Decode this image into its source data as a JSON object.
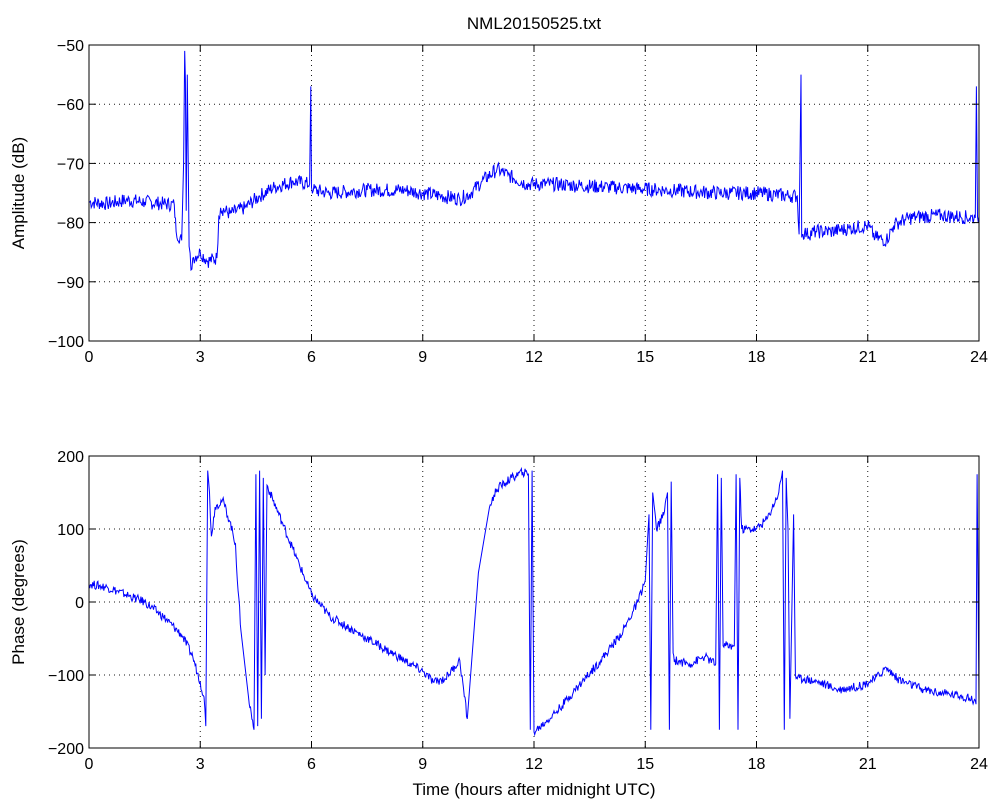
{
  "chart_data": [
    {
      "type": "line",
      "title": "NML20150525.txt",
      "xlabel": "",
      "ylabel": "Amplitude (dB)",
      "xlim": [
        0,
        24
      ],
      "ylim": [
        -100,
        -50
      ],
      "xticks": [
        0,
        3,
        6,
        9,
        12,
        15,
        18,
        21,
        24
      ],
      "xtick_labels": [
        "0",
        "3",
        "6",
        "9",
        "12",
        "15",
        "18",
        "21",
        "24"
      ],
      "yticks": [
        -100,
        -90,
        -80,
        -70,
        -60,
        -50
      ],
      "ytick_labels": [
        "−100",
        "−90",
        "−80",
        "−70",
        "−60",
        "−50"
      ],
      "grid": true,
      "color": "#0000ff",
      "series": [
        {
          "x": [
            0,
            0.5,
            1.0,
            1.5,
            2.0,
            2.3,
            2.35,
            2.5,
            2.55,
            2.58,
            2.6,
            2.62,
            2.65,
            2.7,
            2.75,
            2.8,
            3.0,
            3.2,
            3.45,
            3.5,
            3.55,
            3.8,
            4.2,
            4.6,
            5.0,
            5.5,
            5.95,
            5.98,
            6.0,
            6.05,
            6.5,
            7.5,
            8.5,
            9.5,
            10.0,
            10.3,
            10.6,
            11.0,
            11.3,
            11.8,
            12.5,
            14.0,
            15.5,
            17.0,
            18.0,
            18.9,
            19.1,
            19.15,
            19.2,
            19.22,
            19.25,
            19.3,
            19.35,
            19.6,
            20.0,
            20.5,
            21.0,
            21.2,
            21.5,
            21.7,
            21.8,
            22.0,
            22.3,
            23.0,
            23.5,
            23.9,
            23.93,
            23.96,
            24.0
          ],
          "y": [
            -76.5,
            -76.8,
            -76.2,
            -76.5,
            -76.8,
            -77,
            -81.5,
            -83,
            -70,
            -51,
            -56,
            -78,
            -55,
            -84,
            -88,
            -86,
            -85,
            -86.5,
            -86,
            -79,
            -77.5,
            -78.5,
            -77.5,
            -75.5,
            -74,
            -73,
            -73.5,
            -57,
            -74,
            -74.5,
            -75,
            -74.5,
            -74.5,
            -75.5,
            -76,
            -75,
            -73,
            -71,
            -72,
            -73.5,
            -73.5,
            -74,
            -74.5,
            -75,
            -75,
            -75.5,
            -75.5,
            -82,
            -55,
            -82.5,
            -82,
            -81.5,
            -82,
            -81.5,
            -81.5,
            -81,
            -80.5,
            -82.5,
            -83,
            -80.5,
            -80,
            -79.5,
            -79,
            -78.8,
            -79,
            -79.2,
            -57,
            -79,
            -79
          ]
        }
      ]
    },
    {
      "type": "line",
      "title": "",
      "xlabel": "Time (hours after midnight UTC)",
      "ylabel": "Phase (degrees)",
      "xlim": [
        0,
        24
      ],
      "ylim": [
        -200,
        200
      ],
      "xticks": [
        0,
        3,
        6,
        9,
        12,
        15,
        18,
        21,
        24
      ],
      "xtick_labels": [
        "0",
        "3",
        "6",
        "9",
        "12",
        "15",
        "18",
        "21",
        "24"
      ],
      "yticks": [
        -200,
        -100,
        0,
        100,
        200
      ],
      "ytick_labels": [
        "−200",
        "−100",
        "0",
        "100",
        "200"
      ],
      "grid": true,
      "color": "#0000ff",
      "series": [
        {
          "x": [
            0,
            0.5,
            1.0,
            1.5,
            2.0,
            2.5,
            2.8,
            3.0,
            3.1,
            3.15,
            3.2,
            3.25,
            3.3,
            3.4,
            3.6,
            3.8,
            3.95,
            4.0,
            4.1,
            4.3,
            4.45,
            4.5,
            4.55,
            4.6,
            4.65,
            4.7,
            4.75,
            4.8,
            5.2,
            5.6,
            6.0,
            6.5,
            7.0,
            7.5,
            8.0,
            8.5,
            9.0,
            9.3,
            9.6,
            10.0,
            10.2,
            10.5,
            10.8,
            11.0,
            11.4,
            11.7,
            11.85,
            11.9,
            11.95,
            12.0,
            12.3,
            12.7,
            13.2,
            13.8,
            14.4,
            14.8,
            15.0,
            15.1,
            15.15,
            15.2,
            15.3,
            15.5,
            15.6,
            15.65,
            15.7,
            15.75,
            15.8,
            16.2,
            16.6,
            16.9,
            16.95,
            17.0,
            17.05,
            17.1,
            17.4,
            17.45,
            17.5,
            17.55,
            17.6,
            18.0,
            18.3,
            18.6,
            18.7,
            18.75,
            18.8,
            18.85,
            18.9,
            19.0,
            19.05,
            19.1,
            19.3,
            19.7,
            20.2,
            20.8,
            21.2,
            21.5,
            21.8,
            22.0,
            22.5,
            23.0,
            23.5,
            23.9,
            23.92,
            23.95,
            24.0
          ],
          "y": [
            25,
            20,
            10,
            0,
            -20,
            -45,
            -75,
            -110,
            -130,
            -170,
            180,
            150,
            90,
            130,
            140,
            110,
            80,
            30,
            -40,
            -130,
            -175,
            175,
            -170,
            180,
            -160,
            170,
            -100,
            160,
            110,
            60,
            10,
            -20,
            -35,
            -50,
            -65,
            -80,
            -95,
            -110,
            -105,
            -80,
            -160,
            40,
            130,
            155,
            170,
            178,
            175,
            -175,
            180,
            -178,
            -165,
            -145,
            -115,
            -80,
            -40,
            0,
            30,
            120,
            -175,
            150,
            100,
            120,
            150,
            -175,
            165,
            -70,
            -80,
            -85,
            -75,
            -85,
            175,
            -175,
            170,
            -60,
            -60,
            175,
            -175,
            170,
            100,
            100,
            115,
            150,
            180,
            -175,
            170,
            100,
            -160,
            120,
            -100,
            -105,
            -105,
            -110,
            -120,
            -115,
            -105,
            -90,
            -105,
            -110,
            -120,
            -125,
            -128,
            -135,
            -140,
            175,
            -140
          ]
        }
      ]
    }
  ]
}
